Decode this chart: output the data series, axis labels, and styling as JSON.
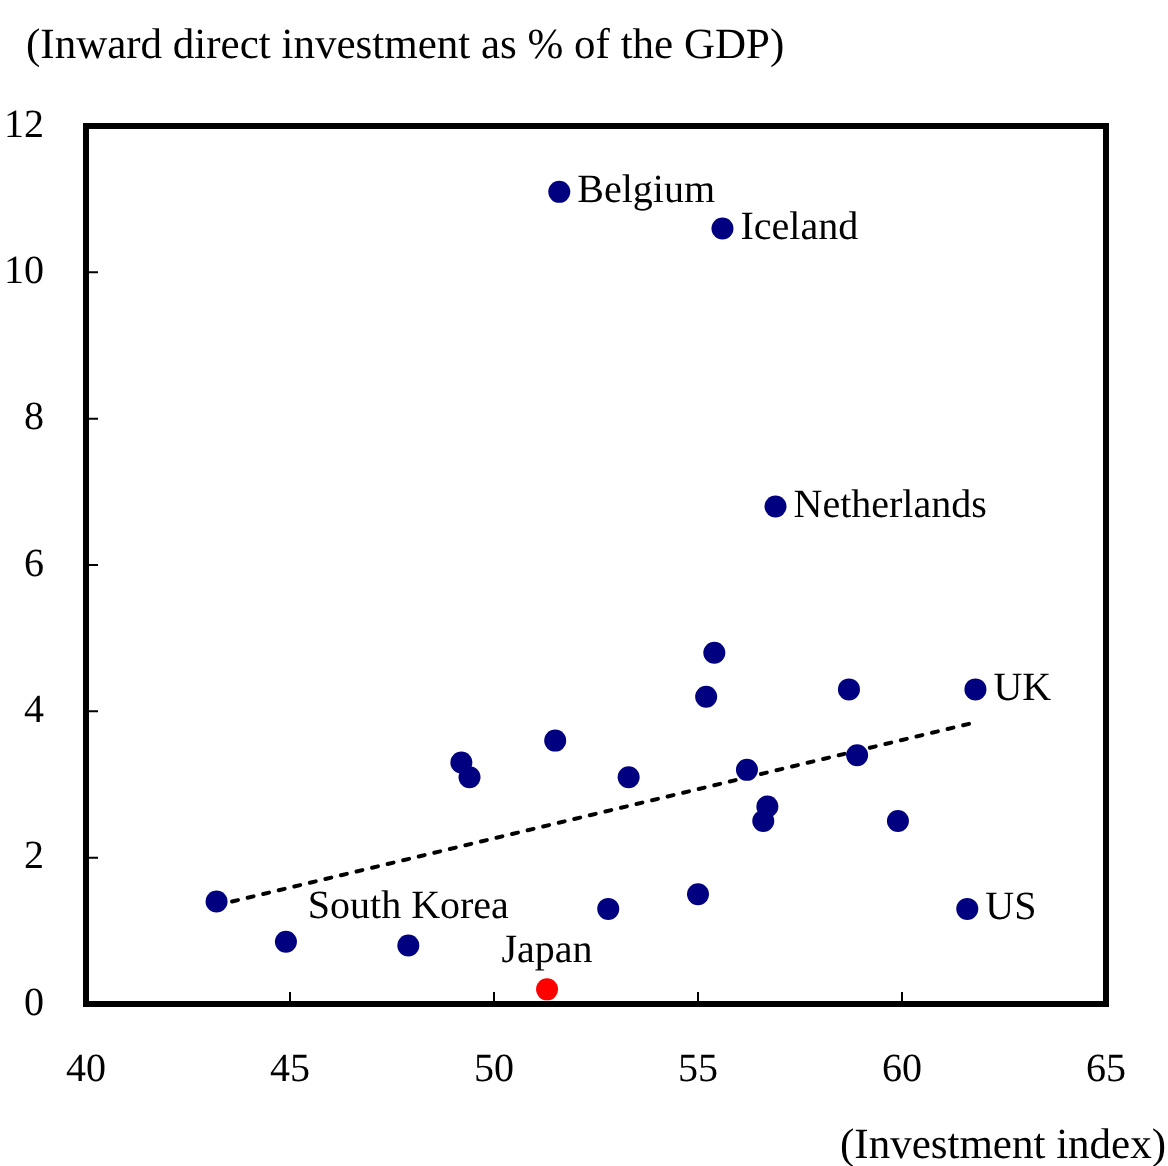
{
  "chart_data": {
    "type": "scatter",
    "ylabel": "(Inward direct investment as % of the GDP)",
    "xlabel": "(Investment index)",
    "xlim": [
      40,
      65
    ],
    "xticks": [
      40,
      45,
      50,
      55,
      60,
      65
    ],
    "ylim": [
      0,
      12
    ],
    "yticks": [
      0,
      2,
      4,
      6,
      8,
      10,
      12
    ],
    "marker": "circle",
    "series": [
      {
        "x": [
          51.6,
          55.6,
          56.9,
          55.4,
          55.2,
          58.7,
          61.8,
          58.9,
          49.2,
          49.4,
          51.5,
          53.3,
          56.2,
          56.7,
          56.6,
          59.9,
          43.2,
          44.9,
          47.9,
          52.8,
          55,
          61.6,
          51.3
        ],
        "values": [
          11.1,
          10.6,
          6.8,
          4.8,
          4.2,
          4.3,
          4.3,
          3.4,
          3.3,
          3.1,
          3.6,
          3.1,
          3.2,
          2.7,
          2.5,
          2.5,
          1.4,
          0.85,
          0.8,
          1.3,
          1.5,
          1.3,
          0.2
        ],
        "colors": [
          "#000080",
          "#000080",
          "#000080",
          "#000080",
          "#000080",
          "#000080",
          "#000080",
          "#000080",
          "#000080",
          "#000080",
          "#000080",
          "#000080",
          "#000080",
          "#000080",
          "#000080",
          "#000080",
          "#000080",
          "#000080",
          "#000080",
          "#000080",
          "#000080",
          "#000080",
          "#ff0000"
        ]
      },
      {
        "type": "line",
        "x": [
          43.2,
          61.8
        ],
        "values": [
          1.35,
          3.85
        ],
        "color": "#000000",
        "line_style": "dotted",
        "marker": "none"
      }
    ],
    "annotations": [
      {
        "text": "Belgium",
        "x": 51.6,
        "y": 11.1
      },
      {
        "text": "Iceland",
        "x": 55.6,
        "y": 10.6
      },
      {
        "text": "Netherlands",
        "x": 56.9,
        "y": 6.8
      },
      {
        "text": "UK",
        "x": 61.8,
        "y": 4.3
      },
      {
        "text": "South Korea",
        "x": 47.9,
        "y": 0.8
      },
      {
        "text": "Japan",
        "x": 51.3,
        "y": 0.2
      },
      {
        "text": "US",
        "x": 61.6,
        "y": 1.3
      }
    ]
  }
}
